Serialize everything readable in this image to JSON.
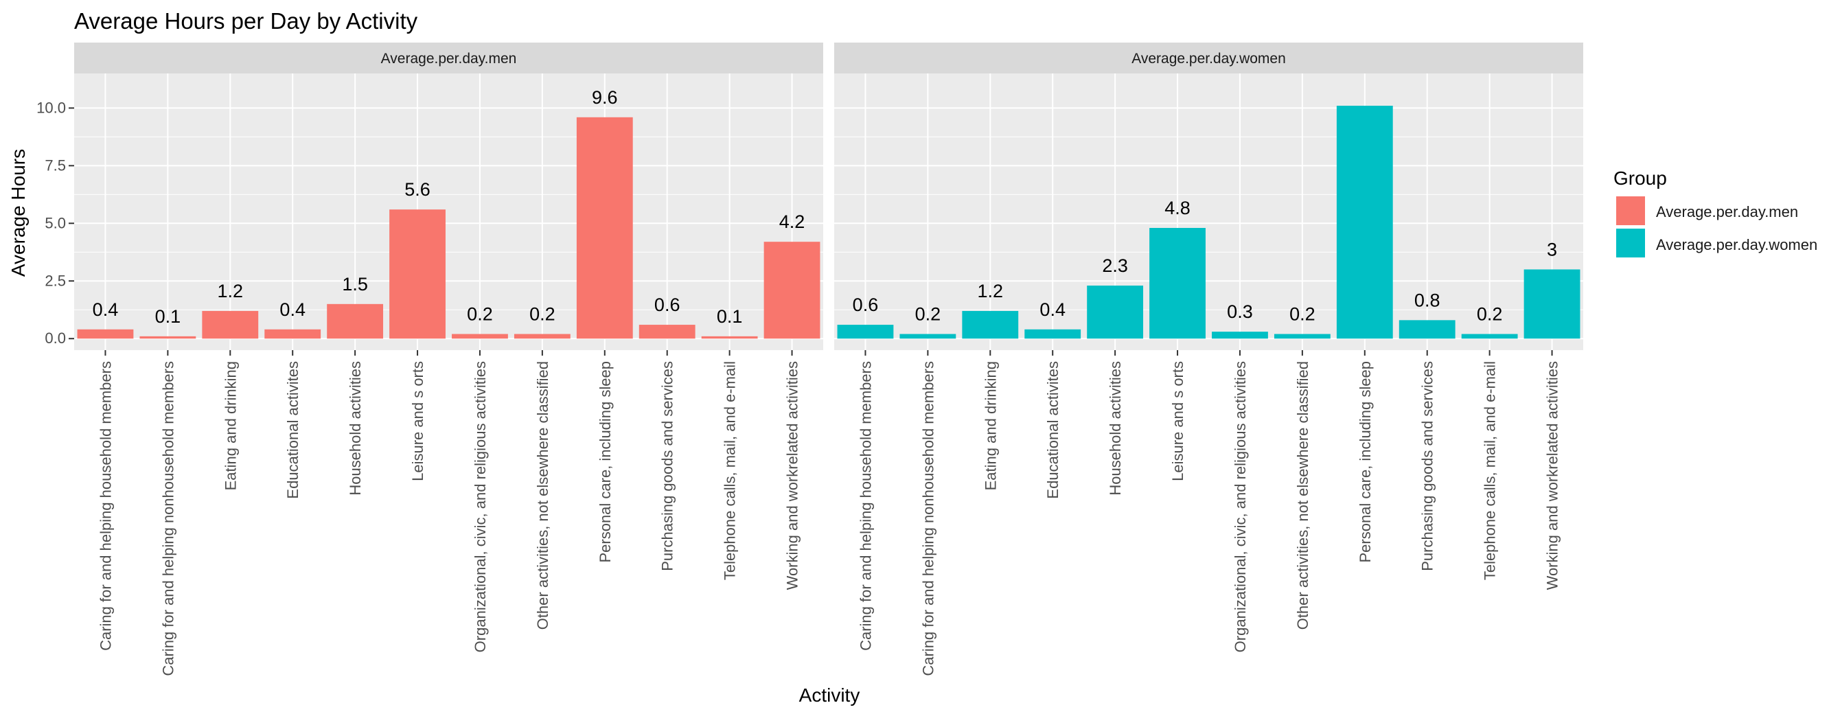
{
  "chart_data": {
    "type": "bar",
    "title": "Average Hours per Day by Activity",
    "xlabel": "Activity",
    "ylabel": "Average Hours",
    "ylim": [
      -0.5,
      11.5
    ],
    "yticks": [
      "0.0",
      "2.5",
      "5.0",
      "7.5",
      "10.0"
    ],
    "grid": true,
    "legend": {
      "title": "Group",
      "position": "right",
      "entries": [
        "Average.per.day.men",
        "Average.per.day.women"
      ]
    },
    "categories": [
      "Caring for and helping household members",
      "Caring for and helping nonhousehold members",
      "Eating and drinking",
      "Educational activites",
      "Household activities",
      "Leisure and s orts",
      "Organizational, civic, and religious activities",
      "Other activities, not elsewhere classified",
      "Personal care, including sleep",
      "Purchasing goods and services",
      "Telephone calls, mail, and e-mail",
      "Working and workrelated activities"
    ],
    "series": [
      {
        "name": "Average.per.day.men",
        "color": "#F8766D",
        "values": [
          0.4,
          0.1,
          1.2,
          0.4,
          1.5,
          5.6,
          0.2,
          0.2,
          9.6,
          0.6,
          0.1,
          4.2
        ],
        "labels": [
          "0.4",
          "0.1",
          "1.2",
          "0.4",
          "1.5",
          "5.6",
          "0.2",
          "0.2",
          "9.6",
          "0.6",
          "0.1",
          "4.2"
        ]
      },
      {
        "name": "Average.per.day.women",
        "color": "#00BFC4",
        "values": [
          0.6,
          0.2,
          1.2,
          0.4,
          2.3,
          4.8,
          0.3,
          0.2,
          10.1,
          0.8,
          0.2,
          3.0
        ],
        "labels": [
          "0.6",
          "0.2",
          "1.2",
          "0.4",
          "2.3",
          "4.8",
          "0.3",
          "0.2",
          "",
          "0.8",
          "0.2",
          "3"
        ]
      }
    ]
  }
}
